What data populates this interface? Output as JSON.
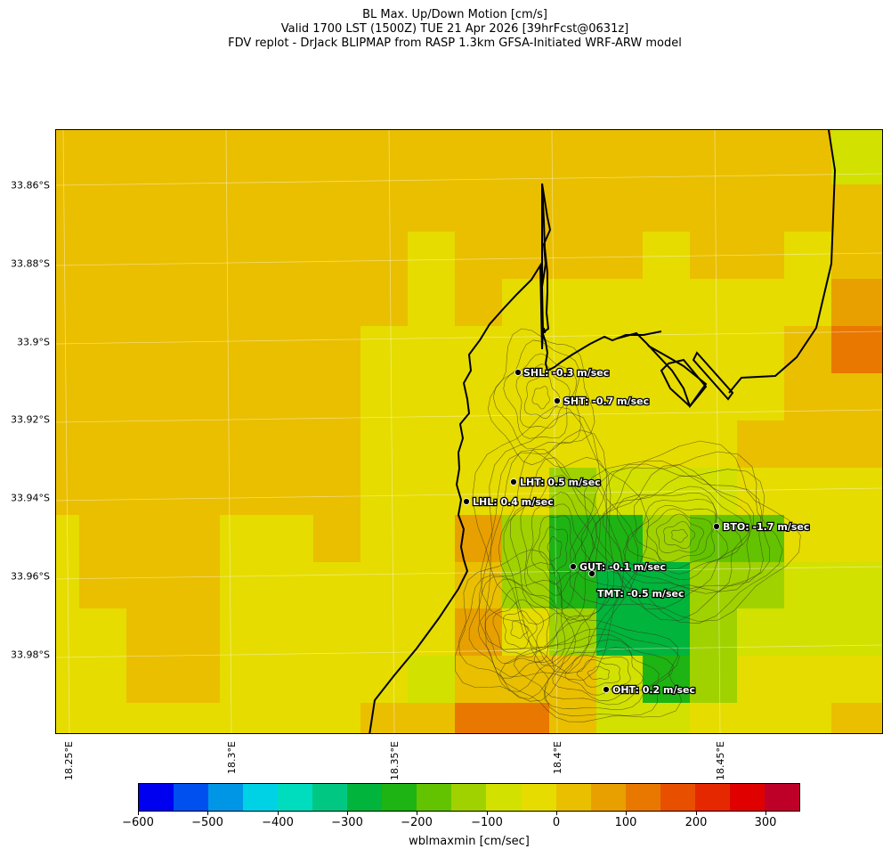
{
  "header": {
    "title_line1": "BL Max. Up/Down Motion [cm/s]",
    "title_line2": "Valid 1700 LST (1500Z) TUE 21 Apr 2026 [39hrFcst@0631z]",
    "title_line3": "FDV replot - DrJack BLIPMAP from RASP 1.3km GFSA-Initiated WRF-ARW model"
  },
  "axes": {
    "latitude_ticks": [
      "33.86°S",
      "33.88°S",
      "33.9°S",
      "33.92°S",
      "33.94°S",
      "33.96°S",
      "33.98°S"
    ],
    "longitude_ticks": [
      "18.25°E",
      "18.3°E",
      "18.35°E",
      "18.4°E",
      "18.45°E"
    ]
  },
  "sites": [
    {
      "code": "SHL",
      "label": "SHL: -0.3 m/sec",
      "value_mps": -0.3
    },
    {
      "code": "SHT",
      "label": "SHT: -0.7 m/sec",
      "value_mps": -0.7
    },
    {
      "code": "LHT",
      "label": "LHT: 0.5 m/sec",
      "value_mps": 0.5
    },
    {
      "code": "LHL",
      "label": "LHL: 0.4 m/sec",
      "value_mps": 0.4
    },
    {
      "code": "BTO",
      "label": "BTO: -1.7 m/sec",
      "value_mps": -1.7
    },
    {
      "code": "GUT",
      "label": "GUT: -0.1 m/sec",
      "value_mps": -0.1
    },
    {
      "code": "TMT",
      "label": "TMT: -0.5 m/sec",
      "value_mps": -0.5
    },
    {
      "code": "OHT",
      "label": "OHT: 0.2 m/sec",
      "value_mps": 0.2
    }
  ],
  "colorbar": {
    "title": "wblmaxmin [cm/sec]",
    "tick_labels": [
      "−600",
      "−500",
      "−400",
      "−300",
      "−200",
      "−100",
      "0",
      "100",
      "200",
      "300"
    ],
    "tick_values": [
      -600,
      -500,
      -400,
      -300,
      -200,
      -100,
      0,
      100,
      200,
      300
    ],
    "min": -600,
    "max": 350,
    "step": 50,
    "colors": [
      "#0000f0",
      "#0050f0",
      "#0096e6",
      "#00d2e6",
      "#00dcbe",
      "#00c882",
      "#00b43c",
      "#1eb414",
      "#64c300",
      "#a0d200",
      "#d2e100",
      "#e6dc00",
      "#eabf00",
      "#e8a000",
      "#e87800",
      "#e85000",
      "#e62800",
      "#e00000",
      "#be0028"
    ]
  },
  "map": {
    "cell_colors": {
      "o1": "#eabf00",
      "o2": "#e8a000",
      "o3": "#e87800",
      "y1": "#e6dc00",
      "y2": "#d2e100",
      "g1": "#a0d200",
      "g2": "#64c300",
      "g3": "#1eb414",
      "g4": "#00b43c"
    }
  }
}
